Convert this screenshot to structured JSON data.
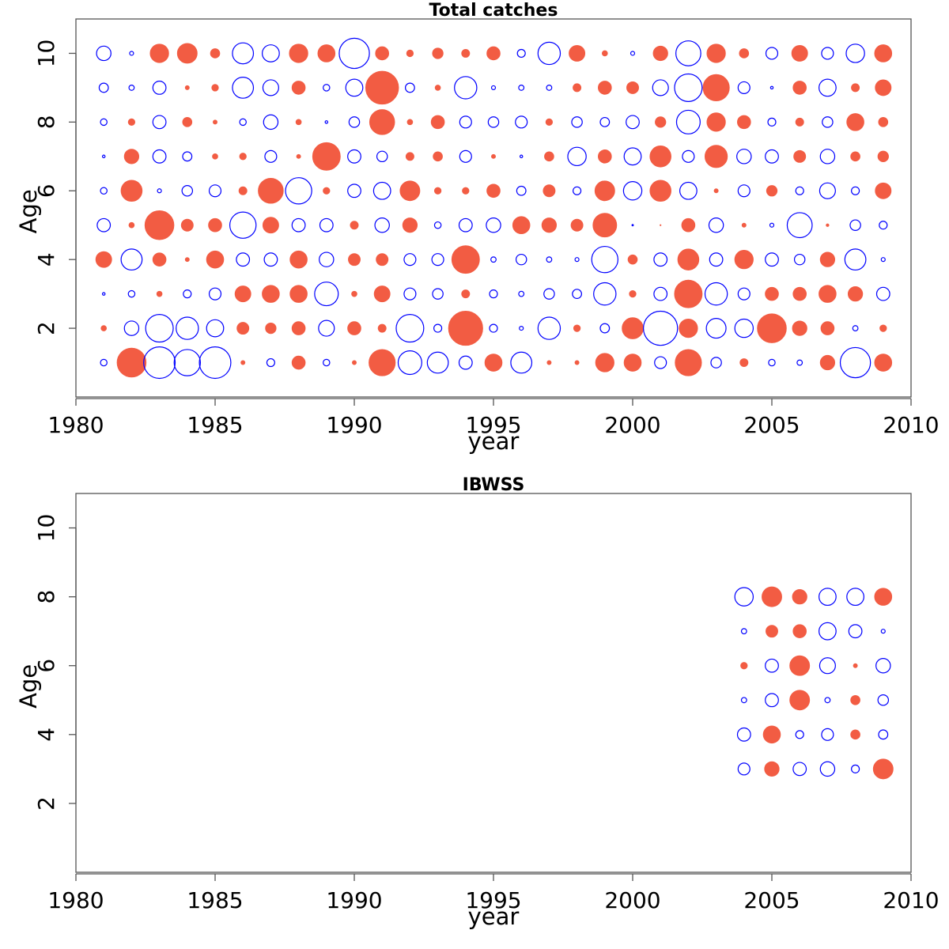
{
  "colors": {
    "positive": "#F25C43",
    "negative": "#0000FF"
  },
  "chart_data": [
    {
      "type": "scatter",
      "subtype": "bubble",
      "title": "Total catches",
      "xlabel": "year",
      "ylabel": "Age",
      "xlim": [
        1980,
        2010
      ],
      "ylim": [
        0,
        11
      ],
      "xticks": [
        1980,
        1985,
        1990,
        1995,
        2000,
        2005,
        2010
      ],
      "yticks": [
        2,
        4,
        6,
        8,
        10
      ],
      "years": [
        1981,
        1982,
        1983,
        1984,
        1985,
        1986,
        1987,
        1988,
        1989,
        1990,
        1991,
        1992,
        1993,
        1994,
        1995,
        1996,
        1997,
        1998,
        1999,
        2000,
        2001,
        2002,
        2003,
        2004,
        2005,
        2006,
        2007,
        2008,
        2009
      ],
      "ages": [
        1,
        2,
        3,
        4,
        5,
        6,
        7,
        8,
        9,
        10
      ],
      "encoding": "filled = positive residual, open = negative residual, radius proportional to magnitude",
      "residuals": [
        [
          -0.5,
          2.2,
          -2.4,
          -2.0,
          -2.4,
          0.3,
          -0.6,
          1.0,
          -0.5,
          0.3,
          2.0,
          -1.8,
          -1.6,
          -1.0,
          1.3,
          -1.6,
          0.3,
          0.3,
          1.4,
          1.3,
          -0.9,
          2.0,
          -0.8,
          0.6,
          -0.5,
          -0.4,
          1.1,
          -2.3,
          1.3
        ],
        [
          0.4,
          -1.1,
          -2.1,
          -1.7,
          -1.3,
          0.9,
          0.8,
          1.0,
          -1.2,
          1.0,
          0.6,
          -2.1,
          -0.6,
          2.6,
          -0.6,
          -0.3,
          -1.7,
          0.5,
          -0.7,
          1.6,
          -2.6,
          1.4,
          -1.5,
          -1.4,
          2.2,
          1.1,
          1.0,
          -0.4,
          0.5
        ],
        [
          -0.2,
          -0.5,
          0.4,
          -0.6,
          -0.9,
          1.2,
          1.3,
          1.3,
          -1.8,
          0.4,
          1.2,
          -0.9,
          -0.8,
          0.6,
          -0.6,
          -0.4,
          -0.8,
          -0.7,
          -1.7,
          0.5,
          -1.0,
          2.1,
          -1.7,
          -0.9,
          1.0,
          1.0,
          1.3,
          1.1,
          -1.0
        ],
        [
          1.2,
          -1.6,
          1.0,
          0.3,
          1.3,
          -1.0,
          -1.0,
          1.3,
          -1.1,
          0.9,
          0.9,
          -0.9,
          -0.9,
          2.1,
          -0.4,
          -0.8,
          -0.4,
          -0.3,
          -2.0,
          0.7,
          -1.0,
          1.6,
          -1.0,
          1.4,
          -1.0,
          -0.8,
          1.1,
          -1.6,
          -0.3
        ],
        [
          -1.0,
          0.4,
          2.2,
          0.9,
          1.0,
          -2.0,
          1.2,
          -1.0,
          -1.0,
          0.6,
          -1.1,
          1.1,
          -0.5,
          -1.0,
          -1.1,
          1.3,
          1.1,
          0.9,
          1.8,
          -0.1,
          0.05,
          1.0,
          -1.1,
          0.3,
          -0.3,
          -1.9,
          0.2,
          -0.8,
          -0.6
        ],
        [
          -0.5,
          1.6,
          -0.3,
          -0.8,
          -0.9,
          0.6,
          1.9,
          -2.0,
          0.5,
          -1.0,
          -1.3,
          1.5,
          0.5,
          0.5,
          1.0,
          -0.7,
          0.9,
          -0.6,
          1.5,
          -1.4,
          1.6,
          -1.3,
          0.3,
          -0.9,
          0.8,
          -0.6,
          -1.2,
          -0.6,
          1.2
        ],
        [
          -0.2,
          1.1,
          -1.0,
          -0.7,
          0.4,
          0.5,
          -0.9,
          0.3,
          2.1,
          -1.0,
          -0.8,
          0.6,
          0.7,
          -0.9,
          0.3,
          -0.2,
          0.7,
          -1.4,
          1.0,
          -1.3,
          1.6,
          -0.9,
          1.7,
          -1.1,
          -1.0,
          0.9,
          -1.1,
          0.7,
          0.8
        ],
        [
          -0.5,
          0.5,
          -1.0,
          0.7,
          0.3,
          -0.5,
          -1.1,
          0.4,
          -0.2,
          -0.8,
          1.9,
          0.4,
          1.0,
          -0.9,
          -0.8,
          -0.9,
          0.5,
          -0.8,
          -0.7,
          -1.0,
          0.8,
          -1.8,
          1.4,
          1.0,
          -0.6,
          0.6,
          -0.8,
          1.3,
          0.7
        ],
        [
          -0.7,
          -0.4,
          -1.0,
          0.3,
          0.5,
          -1.6,
          -1.2,
          1.0,
          -0.5,
          -1.3,
          2.5,
          -0.7,
          0.4,
          -1.7,
          -0.3,
          -0.4,
          -0.4,
          0.6,
          1.0,
          0.9,
          -1.2,
          -2.1,
          2.0,
          -0.9,
          -0.2,
          1.0,
          -1.3,
          0.6,
          1.2
        ],
        [
          -1.1,
          -0.3,
          1.4,
          1.5,
          0.7,
          -1.6,
          -1.3,
          1.4,
          1.3,
          -2.3,
          1.0,
          0.5,
          0.8,
          0.6,
          1.0,
          -0.6,
          -1.7,
          1.2,
          0.4,
          -0.3,
          1.1,
          -1.9,
          1.4,
          0.7,
          -0.9,
          1.2,
          -0.9,
          -1.4,
          1.3
        ]
      ]
    },
    {
      "type": "scatter",
      "subtype": "bubble",
      "title": "IBWSS",
      "xlabel": "year",
      "ylabel": "Age",
      "xlim": [
        1980,
        2010
      ],
      "ylim": [
        0,
        11
      ],
      "xticks": [
        1980,
        1985,
        1990,
        1995,
        2000,
        2005,
        2010
      ],
      "yticks": [
        2,
        4,
        6,
        8,
        10
      ],
      "years": [
        2004,
        2005,
        2006,
        2007,
        2008,
        2009
      ],
      "ages": [
        3,
        4,
        5,
        6,
        7,
        8
      ],
      "encoding": "filled = positive residual, open = negative residual, radius proportional to magnitude",
      "residuals": [
        [
          -0.9,
          1.1,
          -1.0,
          -1.1,
          -0.6,
          1.5
        ],
        [
          -1.0,
          1.3,
          -0.6,
          -0.9,
          0.7,
          -0.7
        ],
        [
          -0.4,
          -1.0,
          1.5,
          -0.4,
          0.7,
          -0.8
        ],
        [
          0.5,
          -1.0,
          1.5,
          -1.2,
          0.3,
          -1.1
        ],
        [
          -0.4,
          0.9,
          1.0,
          -1.3,
          -1.0,
          -0.3
        ],
        [
          -1.4,
          1.5,
          1.1,
          -1.3,
          -1.3,
          1.3
        ]
      ]
    }
  ]
}
